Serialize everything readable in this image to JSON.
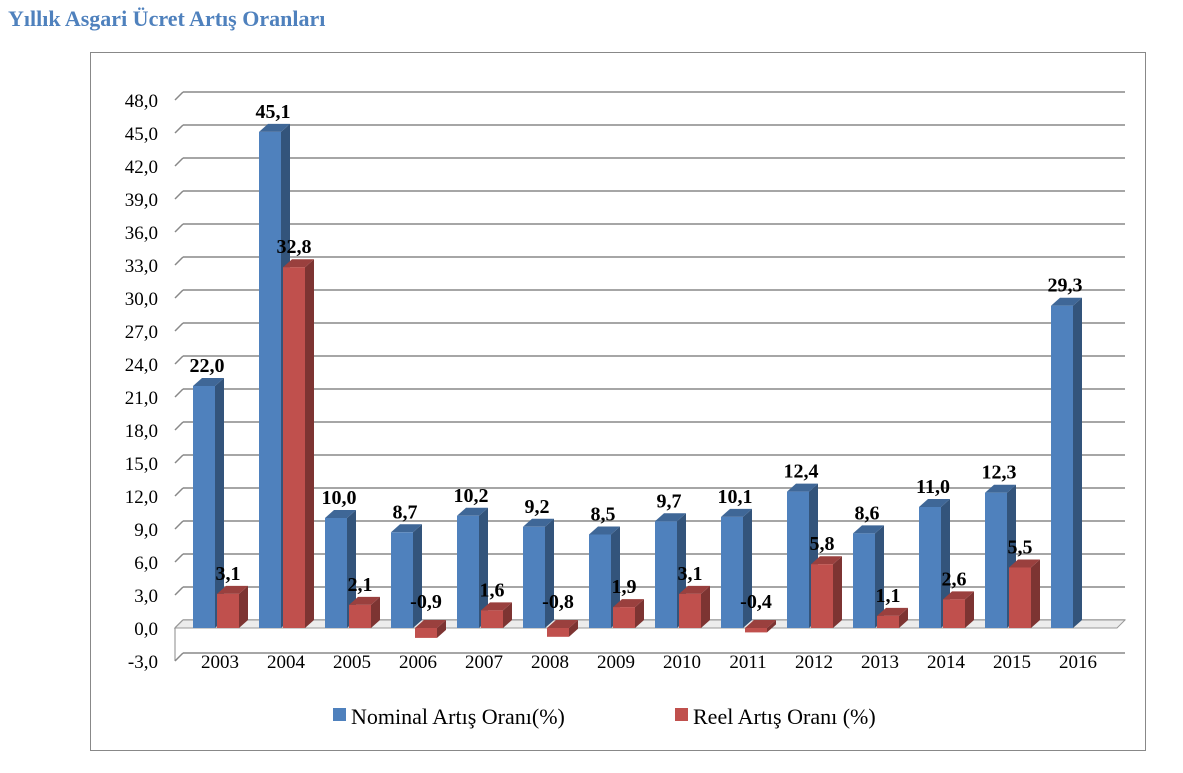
{
  "title": "Yıllık Asgari Ücret Artış Oranları",
  "chart_data": {
    "type": "bar",
    "style": "3d-clustered-column",
    "categories": [
      "2003",
      "2004",
      "2005",
      "2006",
      "2007",
      "2008",
      "2009",
      "2010",
      "2011",
      "2012",
      "2013",
      "2014",
      "2015",
      "2016"
    ],
    "series": [
      {
        "name": "Nominal Artış Oranı(%)",
        "color": "#4f81bd",
        "values": [
          22.0,
          45.1,
          10.0,
          8.7,
          10.2,
          9.2,
          8.5,
          9.7,
          10.1,
          12.4,
          8.6,
          11.0,
          12.3,
          29.3
        ],
        "labels": [
          "22,0",
          "45,1",
          "10,0",
          "8,7",
          "10,2",
          "9,2",
          "8,5",
          "9,7",
          "10,1",
          "12,4",
          "8,6",
          "11,0",
          "12,3",
          "29,3"
        ]
      },
      {
        "name": "Reel Artış Oranı (%)",
        "color": "#c0504d",
        "values": [
          3.1,
          32.8,
          2.1,
          -0.9,
          1.6,
          -0.8,
          1.9,
          3.1,
          -0.4,
          5.8,
          1.1,
          2.6,
          5.5,
          null
        ],
        "labels": [
          "3,1",
          "32,8",
          "2,1",
          "-0,9",
          "1,6",
          "-0,8",
          "1,9",
          "3,1",
          "-0,4",
          "5,8",
          "1,1",
          "2,6",
          "5,5",
          ""
        ]
      }
    ],
    "ylim": [
      -3,
      48
    ],
    "yticks": [
      "-3,0",
      "0,0",
      "3,0",
      "6,0",
      "9,0",
      "12,0",
      "15,0",
      "18,0",
      "21,0",
      "24,0",
      "27,0",
      "30,0",
      "33,0",
      "36,0",
      "39,0",
      "42,0",
      "45,0",
      "48,0"
    ],
    "grid": true,
    "legend": "bottom"
  }
}
